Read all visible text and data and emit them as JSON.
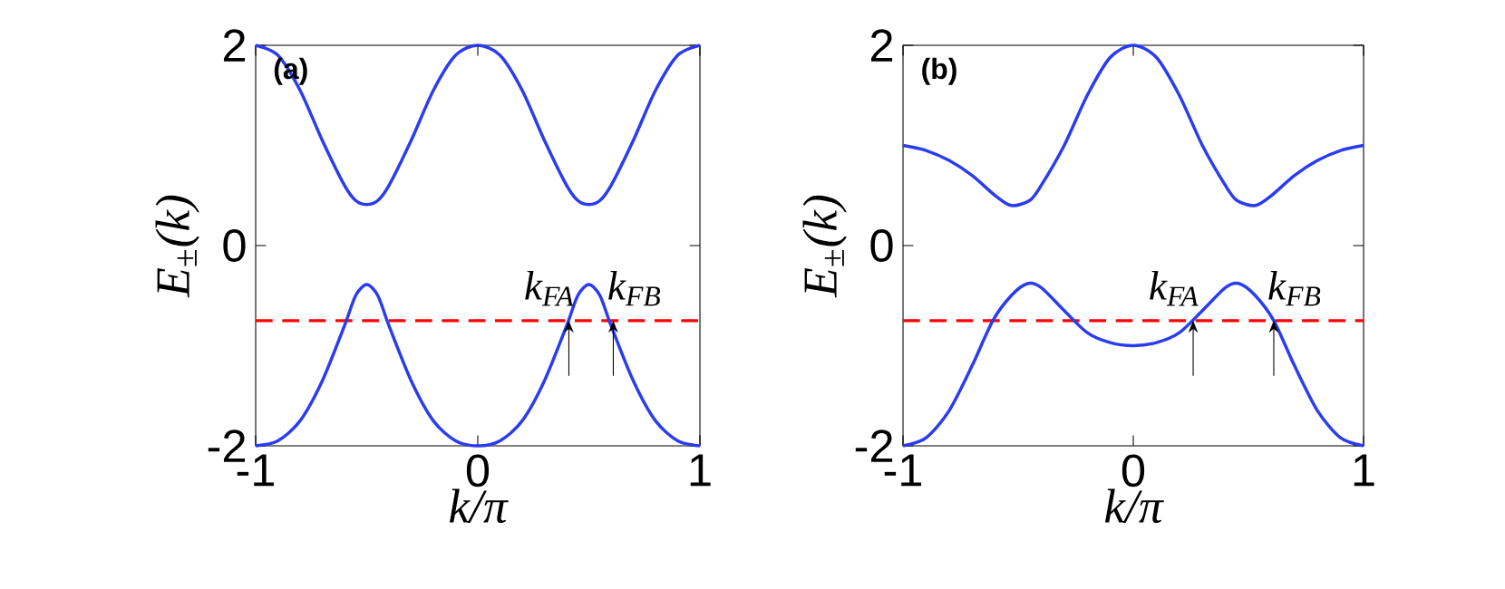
{
  "chart_data": [
    {
      "type": "line",
      "xlabel": "k/π",
      "ylabel": "E$_{±}$(k)",
      "xlim": [
        -1,
        1
      ],
      "ylim": [
        -2,
        2
      ],
      "xticks": [
        -1,
        0,
        1
      ],
      "yticks": [
        -2,
        0,
        2
      ],
      "series": [
        {
          "color": "#2a3cf0",
          "x": [
            -1,
            -0.9,
            -0.8,
            -0.7,
            -0.6,
            -0.55,
            -0.5,
            -0.45,
            -0.4,
            -0.3,
            -0.2,
            -0.1,
            0,
            0.1,
            0.2,
            0.3,
            0.4,
            0.45,
            0.5,
            0.55,
            0.6,
            0.7,
            0.8,
            0.9,
            1
          ],
          "values": [
            2,
            1.9,
            1.55,
            1.05,
            0.6,
            0.45,
            0.41,
            0.45,
            0.6,
            1.05,
            1.55,
            1.9,
            2,
            1.9,
            1.55,
            1.05,
            0.6,
            0.45,
            0.41,
            0.45,
            0.6,
            1.05,
            1.55,
            1.9,
            2
          ]
        },
        {
          "color": "#2a3cf0",
          "x": [
            -1,
            -0.9,
            -0.8,
            -0.7,
            -0.6,
            -0.55,
            -0.5,
            -0.45,
            -0.4,
            -0.3,
            -0.2,
            -0.1,
            0,
            0.1,
            0.2,
            0.3,
            0.4,
            0.45,
            0.5,
            0.55,
            0.6,
            0.7,
            0.8,
            0.9,
            1
          ],
          "values": [
            -2,
            -1.95,
            -1.75,
            -1.35,
            -0.8,
            -0.5,
            -0.39,
            -0.5,
            -0.8,
            -1.35,
            -1.75,
            -1.95,
            -2,
            -1.95,
            -1.75,
            -1.35,
            -0.8,
            -0.5,
            -0.39,
            -0.5,
            -0.8,
            -1.35,
            -1.75,
            -1.95,
            -2
          ]
        }
      ],
      "ref_lines": [
        {
          "axis": "y",
          "value": -0.75,
          "color": "#ff0000",
          "line_style": "dashed"
        }
      ],
      "annotations": [
        "(a)",
        {
          "text": "k$_{FA}$",
          "x": 0.41,
          "y": -0.75
        },
        {
          "text": "k$_{FB}$",
          "x": 0.61,
          "y": -0.75
        }
      ]
    },
    {
      "type": "line",
      "xlabel": "k/π",
      "ylabel": "E$_{±}$(k)",
      "xlim": [
        -1,
        1
      ],
      "ylim": [
        -2,
        2
      ],
      "xticks": [
        -1,
        0,
        1
      ],
      "yticks": [
        -2,
        0,
        2
      ],
      "series": [
        {
          "color": "#2a3cf0",
          "x": [
            -1,
            -0.9,
            -0.8,
            -0.7,
            -0.6,
            -0.53,
            -0.45,
            -0.4,
            -0.3,
            -0.2,
            -0.1,
            0,
            0.1,
            0.2,
            0.3,
            0.4,
            0.45,
            0.53,
            0.6,
            0.7,
            0.8,
            0.9,
            1
          ],
          "values": [
            1,
            0.95,
            0.85,
            0.7,
            0.5,
            0.4,
            0.45,
            0.6,
            1,
            1.5,
            1.88,
            2,
            1.88,
            1.5,
            1,
            0.6,
            0.45,
            0.4,
            0.5,
            0.7,
            0.85,
            0.95,
            1
          ]
        },
        {
          "color": "#2a3cf0",
          "x": [
            -1,
            -0.9,
            -0.8,
            -0.7,
            -0.61,
            -0.53,
            -0.46,
            -0.4,
            -0.3,
            -0.2,
            -0.1,
            0,
            0.1,
            0.2,
            0.3,
            0.4,
            0.46,
            0.53,
            0.61,
            0.7,
            0.8,
            0.9,
            1
          ],
          "values": [
            -2,
            -1.92,
            -1.65,
            -1.2,
            -0.75,
            -0.5,
            -0.38,
            -0.42,
            -0.65,
            -0.87,
            -0.97,
            -1,
            -0.97,
            -0.87,
            -0.65,
            -0.42,
            -0.38,
            -0.5,
            -0.75,
            -1.2,
            -1.65,
            -1.92,
            -2
          ]
        }
      ],
      "ref_lines": [
        {
          "axis": "y",
          "value": -0.75,
          "color": "#ff0000",
          "line_style": "dashed"
        }
      ],
      "annotations": [
        "(b)",
        {
          "text": "k$_{FA}$",
          "x": 0.26,
          "y": -0.75
        },
        {
          "text": "k$_{FB}$",
          "x": 0.61,
          "y": -0.75
        }
      ]
    }
  ]
}
